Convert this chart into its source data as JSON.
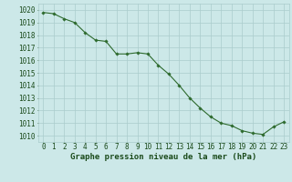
{
  "x": [
    0,
    1,
    2,
    3,
    4,
    5,
    6,
    7,
    8,
    9,
    10,
    11,
    12,
    13,
    14,
    15,
    16,
    17,
    18,
    19,
    20,
    21,
    22,
    23
  ],
  "y": [
    1019.8,
    1019.7,
    1019.3,
    1019.0,
    1018.2,
    1017.6,
    1017.5,
    1016.5,
    1016.5,
    1016.6,
    1016.5,
    1015.6,
    1014.9,
    1014.0,
    1013.0,
    1012.2,
    1011.5,
    1011.0,
    1010.8,
    1010.4,
    1010.2,
    1010.1,
    1010.7,
    1011.1
  ],
  "line_color": "#2d6a2d",
  "marker_color": "#2d6a2d",
  "bg_color": "#cce8e8",
  "grid_color": "#aacccc",
  "xlabel": "Graphe pression niveau de la mer (hPa)",
  "xlabel_color": "#1a4a1a",
  "xlabel_fontsize": 6.5,
  "tick_label_color": "#1a4a1a",
  "ylim": [
    1009.5,
    1020.5
  ],
  "xlim": [
    -0.5,
    23.5
  ],
  "yticks": [
    1010,
    1011,
    1012,
    1013,
    1014,
    1015,
    1016,
    1017,
    1018,
    1019,
    1020
  ],
  "xticks": [
    0,
    1,
    2,
    3,
    4,
    5,
    6,
    7,
    8,
    9,
    10,
    11,
    12,
    13,
    14,
    15,
    16,
    17,
    18,
    19,
    20,
    21,
    22,
    23
  ],
  "tick_fontsize": 5.5,
  "figsize": [
    3.2,
    2.0
  ],
  "dpi": 100
}
